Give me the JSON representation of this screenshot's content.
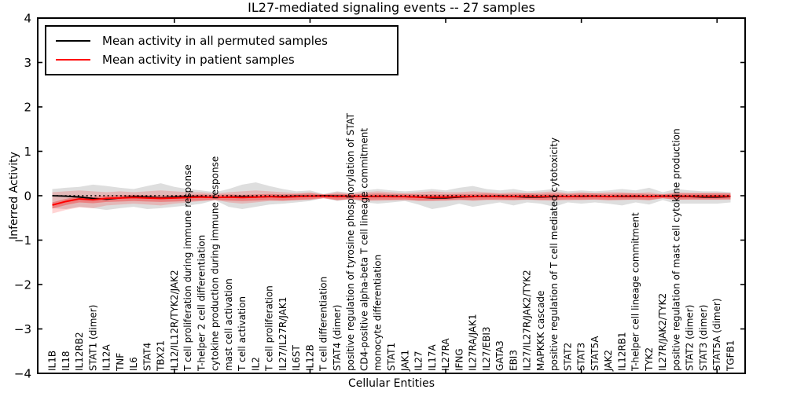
{
  "title": "IL27-mediated signaling events -- 27 samples",
  "legend": {
    "items": [
      {
        "label": "Mean activity in all permuted samples",
        "color": "#000000"
      },
      {
        "label": "Mean activity in patient samples",
        "color": "#ff0000"
      }
    ]
  },
  "chart_data": {
    "type": "line",
    "title": "IL27-mediated signaling events -- 27 samples",
    "xlabel": "Cellular Entities",
    "ylabel": "Inferred Activity",
    "ylim": [
      -4,
      4
    ],
    "yticks": [
      -4,
      -3,
      -2,
      -1,
      0,
      1,
      2,
      3,
      4
    ],
    "xtick_positions": [
      9,
      19,
      29,
      39,
      49
    ],
    "grid": false,
    "legend_position": "upper left",
    "categories": [
      "IL1B",
      "IL18",
      "IL12RB2",
      "STAT1 (dimer)",
      "IL12A",
      "TNF",
      "IL6",
      "STAT4",
      "TBX21",
      "IL12/IL12R/TYK2/JAK2",
      "T cell proliferation during immune response",
      "T-helper 2 cell differentiation",
      "cytokine production during immune response",
      "mast cell activation",
      "T cell activation",
      "IL2",
      "T cell proliferation",
      "IL27/IL27R/JAK1",
      "IL6ST",
      "IL12B",
      "T cell differentiation",
      "STAT4 (dimer)",
      "positive regulation of tyrosine phosphorylation of STAT",
      "CD4-positive alpha-beta T cell lineage commitment",
      "monocyte differentiation",
      "STAT1",
      "JAK1",
      "IL27",
      "IL17A",
      "IL27RA",
      "IFNG",
      "IL27RA/JAK1",
      "IL27/EBI3",
      "GATA3",
      "EBI3",
      "IL27/IL27R/JAK2/TYK2",
      "MAPKKK cascade",
      "positive regulation of T cell mediated cytotoxicity",
      "STAT2",
      "STAT3",
      "STAT5A",
      "JAK2",
      "IL12RB1",
      "T-helper cell lineage commitment",
      "TYK2",
      "IL27R/JAK2/TYK2",
      "positive regulation of mast cell cytokine production",
      "STAT2 (dimer)",
      "STAT3 (dimer)",
      "STAT5A (dimer)",
      "TGFB1"
    ],
    "series": [
      {
        "name": "Mean activity in all permuted samples",
        "color": "#000000",
        "width": 1.8,
        "values": [
          0.0,
          -0.01,
          -0.03,
          -0.06,
          -0.08,
          -0.05,
          -0.02,
          -0.03,
          -0.05,
          -0.03,
          -0.02,
          -0.02,
          -0.04,
          -0.03,
          -0.02,
          -0.03,
          -0.02,
          -0.02,
          -0.01,
          -0.01,
          0.0,
          -0.01,
          -0.01,
          -0.02,
          -0.02,
          -0.01,
          -0.02,
          -0.03,
          -0.05,
          -0.05,
          -0.03,
          -0.02,
          -0.02,
          -0.01,
          -0.02,
          -0.03,
          -0.03,
          -0.02,
          -0.02,
          -0.02,
          -0.01,
          -0.02,
          -0.02,
          -0.02,
          -0.02,
          -0.01,
          -0.02,
          -0.02,
          -0.03,
          -0.03,
          -0.02
        ]
      },
      {
        "name": "Mean activity in patient samples",
        "color": "#ff0000",
        "width": 2,
        "values": [
          -0.21,
          -0.13,
          -0.07,
          -0.09,
          -0.06,
          -0.05,
          -0.04,
          -0.05,
          -0.06,
          -0.05,
          -0.04,
          -0.03,
          -0.04,
          -0.03,
          -0.04,
          -0.03,
          -0.02,
          -0.03,
          -0.02,
          -0.01,
          -0.01,
          -0.02,
          -0.01,
          -0.02,
          -0.01,
          -0.02,
          -0.02,
          -0.03,
          -0.03,
          -0.03,
          -0.02,
          -0.02,
          -0.01,
          -0.02,
          -0.02,
          -0.01,
          -0.02,
          -0.01,
          -0.02,
          -0.01,
          -0.01,
          -0.02,
          -0.01,
          -0.01,
          -0.02,
          -0.01,
          -0.01,
          -0.01,
          -0.01,
          -0.01,
          -0.01
        ]
      }
    ],
    "bands": [
      {
        "name": "permuted-samples-range",
        "color": "#000000",
        "opacity": 0.13,
        "upper": [
          0.15,
          0.18,
          0.2,
          0.25,
          0.22,
          0.18,
          0.15,
          0.22,
          0.28,
          0.2,
          0.15,
          0.12,
          0.08,
          0.15,
          0.25,
          0.3,
          0.22,
          0.15,
          0.1,
          0.12,
          0.04,
          0.1,
          0.06,
          0.12,
          0.15,
          0.12,
          0.1,
          0.12,
          0.15,
          0.12,
          0.18,
          0.22,
          0.15,
          0.12,
          0.15,
          0.1,
          0.12,
          0.15,
          0.1,
          0.12,
          0.1,
          0.12,
          0.15,
          0.12,
          0.18,
          0.08,
          0.15,
          0.12,
          0.1,
          0.1,
          0.08
        ],
        "lower": [
          -0.28,
          -0.3,
          -0.25,
          -0.28,
          -0.32,
          -0.28,
          -0.25,
          -0.3,
          -0.28,
          -0.25,
          -0.22,
          -0.18,
          -0.1,
          -0.25,
          -0.3,
          -0.25,
          -0.2,
          -0.18,
          -0.15,
          -0.12,
          -0.05,
          -0.12,
          -0.08,
          -0.15,
          -0.18,
          -0.15,
          -0.12,
          -0.2,
          -0.3,
          -0.25,
          -0.18,
          -0.25,
          -0.2,
          -0.15,
          -0.22,
          -0.15,
          -0.18,
          -0.25,
          -0.15,
          -0.18,
          -0.15,
          -0.18,
          -0.22,
          -0.15,
          -0.2,
          -0.1,
          -0.18,
          -0.18,
          -0.18,
          -0.18,
          -0.15
        ]
      },
      {
        "name": "patient-samples-range-outer",
        "color": "#ff0000",
        "opacity": 0.17,
        "upper": [
          0.08,
          0.1,
          0.12,
          0.1,
          0.08,
          0.1,
          0.08,
          0.1,
          0.12,
          0.1,
          0.08,
          0.08,
          0.05,
          0.08,
          0.1,
          0.12,
          0.1,
          0.08,
          0.06,
          0.08,
          0.03,
          0.08,
          0.05,
          0.08,
          0.1,
          0.08,
          0.06,
          0.08,
          0.1,
          0.08,
          0.08,
          0.1,
          0.08,
          0.06,
          0.08,
          0.06,
          0.08,
          0.1,
          0.06,
          0.08,
          0.06,
          0.08,
          0.08,
          0.06,
          0.08,
          0.04,
          0.08,
          0.07,
          0.07,
          0.07,
          0.06
        ],
        "lower": [
          -0.4,
          -0.32,
          -0.26,
          -0.28,
          -0.22,
          -0.2,
          -0.18,
          -0.2,
          -0.22,
          -0.18,
          -0.15,
          -0.12,
          -0.09,
          -0.15,
          -0.18,
          -0.15,
          -0.12,
          -0.12,
          -0.1,
          -0.08,
          -0.04,
          -0.1,
          -0.07,
          -0.12,
          -0.12,
          -0.1,
          -0.08,
          -0.12,
          -0.12,
          -0.1,
          -0.08,
          -0.12,
          -0.1,
          -0.08,
          -0.1,
          -0.08,
          -0.1,
          -0.12,
          -0.08,
          -0.1,
          -0.08,
          -0.1,
          -0.1,
          -0.08,
          -0.1,
          -0.05,
          -0.09,
          -0.08,
          -0.08,
          -0.08,
          -0.07
        ]
      },
      {
        "name": "patient-samples-range-inner",
        "color": "#ff0000",
        "opacity": 0.3,
        "upper": [
          -0.15,
          -0.07,
          -0.01,
          -0.03,
          0.0,
          0.01,
          0.02,
          0.01,
          0.0,
          0.01,
          0.02,
          0.03,
          0.02,
          0.03,
          0.02,
          0.03,
          0.04,
          0.03,
          0.04,
          0.05,
          0.03,
          0.04,
          0.03,
          0.04,
          0.05,
          0.04,
          0.04,
          0.03,
          0.03,
          0.03,
          0.04,
          0.04,
          0.05,
          0.04,
          0.04,
          0.05,
          0.04,
          0.05,
          0.04,
          0.05,
          0.05,
          0.04,
          0.05,
          0.05,
          0.04,
          0.03,
          0.05,
          0.05,
          0.05,
          0.05,
          0.05
        ],
        "lower": [
          -0.29,
          -0.21,
          -0.15,
          -0.17,
          -0.14,
          -0.13,
          -0.12,
          -0.13,
          -0.14,
          -0.13,
          -0.12,
          -0.11,
          -0.1,
          -0.11,
          -0.12,
          -0.11,
          -0.1,
          -0.11,
          -0.1,
          -0.09,
          -0.06,
          -0.1,
          -0.08,
          -0.1,
          -0.09,
          -0.1,
          -0.1,
          -0.11,
          -0.11,
          -0.11,
          -0.1,
          -0.1,
          -0.09,
          -0.1,
          -0.1,
          -0.09,
          -0.1,
          -0.09,
          -0.1,
          -0.09,
          -0.09,
          -0.1,
          -0.09,
          -0.09,
          -0.1,
          -0.06,
          -0.09,
          -0.09,
          -0.09,
          -0.09,
          -0.09
        ]
      }
    ],
    "reference_line": {
      "y": 0,
      "style": "dotted",
      "color": "#000000"
    }
  }
}
